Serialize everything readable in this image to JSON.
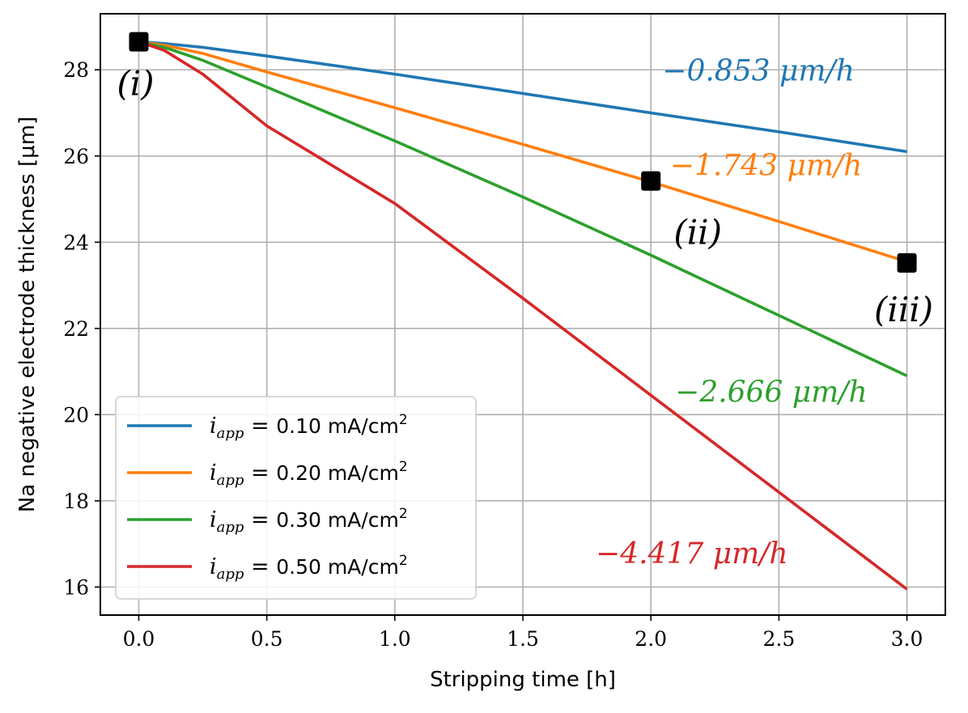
{
  "chart_data": {
    "type": "line",
    "title": "",
    "xlabel": "Stripping time [h]",
    "ylabel": "Na negative electrode thickness [μm]",
    "xlim": [
      -0.15,
      3.15
    ],
    "ylim": [
      15.35,
      29.3
    ],
    "grid": true,
    "legend_position": "lower-left",
    "x_ticks": [
      0.0,
      0.5,
      1.0,
      1.5,
      2.0,
      2.5,
      3.0
    ],
    "x_tick_labels": [
      "0.0",
      "0.5",
      "1.0",
      "1.5",
      "2.0",
      "2.5",
      "3.0"
    ],
    "y_ticks": [
      16,
      18,
      20,
      22,
      24,
      26,
      28
    ],
    "y_tick_labels": [
      "16",
      "18",
      "20",
      "22",
      "24",
      "26",
      "28"
    ],
    "series": [
      {
        "name": "i_app = 0.10 mA/cm²",
        "legend_label": "0.10 mA/cm",
        "color": "#1f77b4",
        "rate_label": "−0.853 μm/h",
        "x": [
          0,
          0.1,
          0.25,
          0.5,
          1.0,
          1.5,
          2.0,
          2.5,
          3.0
        ],
        "y": [
          28.65,
          28.61,
          28.52,
          28.32,
          27.9,
          27.45,
          27.0,
          26.56,
          26.1
        ]
      },
      {
        "name": "i_app = 0.20 mA/cm²",
        "legend_label": "0.20 mA/cm",
        "color": "#ff7f0e",
        "rate_label": "−1.743 μm/h",
        "x": [
          0,
          0.1,
          0.25,
          0.5,
          1.0,
          1.5,
          2.0,
          2.5,
          3.0
        ],
        "y": [
          28.65,
          28.57,
          28.38,
          27.95,
          27.12,
          26.27,
          25.4,
          24.48,
          23.55
        ]
      },
      {
        "name": "i_app = 0.30 mA/cm²",
        "legend_label": "0.30 mA/cm",
        "color": "#2ca02c",
        "rate_label": "−2.666 μm/h",
        "x": [
          0,
          0.1,
          0.25,
          0.5,
          1.0,
          1.5,
          2.0,
          2.5,
          3.0
        ],
        "y": [
          28.65,
          28.52,
          28.22,
          27.6,
          26.35,
          25.05,
          23.7,
          22.3,
          20.9
        ]
      },
      {
        "name": "i_app = 0.50 mA/cm²",
        "legend_label": "0.50 mA/cm",
        "color": "#d62728",
        "rate_label": "−4.417 μm/h",
        "x": [
          0,
          0.1,
          0.25,
          0.5,
          1.0,
          1.5,
          2.0,
          2.5,
          3.0
        ],
        "y": [
          28.65,
          28.45,
          27.9,
          26.7,
          24.9,
          22.7,
          20.45,
          18.2,
          15.95
        ]
      }
    ],
    "markers": [
      {
        "label": "(i)",
        "x": 0.0,
        "y": 28.65
      },
      {
        "label": "(ii)",
        "x": 2.0,
        "y": 25.42
      },
      {
        "label": "(iii)",
        "x": 3.0,
        "y": 23.52
      }
    ],
    "rate_label_positions": [
      {
        "series": 0,
        "x": 2.42,
        "y": 27.75
      },
      {
        "series": 1,
        "x": 2.45,
        "y": 25.55
      },
      {
        "series": 2,
        "x": 2.47,
        "y": 20.3
      },
      {
        "series": 3,
        "x": 2.16,
        "y": 16.55
      }
    ]
  }
}
